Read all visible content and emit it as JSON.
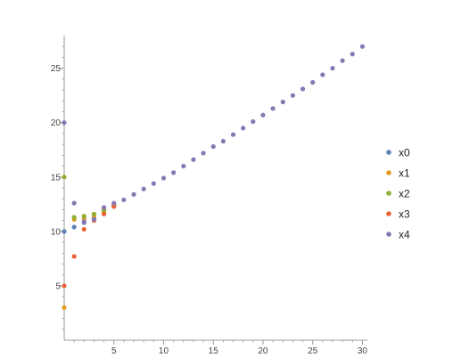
{
  "chart_data": {
    "type": "scatter",
    "title": "",
    "xlabel": "",
    "ylabel": "",
    "xlim": [
      0,
      30.5
    ],
    "ylim": [
      0,
      28
    ],
    "x_ticks": [
      5,
      10,
      15,
      20,
      25,
      30
    ],
    "y_ticks": [
      5,
      10,
      15,
      20,
      25
    ],
    "grid": false,
    "legend_position": "right",
    "series": [
      {
        "name": "x0",
        "color": "#5E81B5",
        "x": [
          0,
          1,
          2,
          3,
          4,
          5
        ],
        "y": [
          10.0,
          10.4,
          10.8,
          11.2,
          11.9,
          12.3
        ]
      },
      {
        "name": "x1",
        "color": "#E19C24",
        "x": [
          0,
          1,
          2,
          3,
          4,
          5
        ],
        "y": [
          3.0,
          11.1,
          11.2,
          11.4,
          11.8,
          12.4
        ]
      },
      {
        "name": "x2",
        "color": "#8FB032",
        "x": [
          0,
          1,
          2,
          3,
          4,
          5
        ],
        "y": [
          15.0,
          11.3,
          11.4,
          11.6,
          12.0,
          12.5
        ]
      },
      {
        "name": "x3",
        "color": "#EB6235",
        "x": [
          0,
          1,
          2,
          3,
          4,
          5
        ],
        "y": [
          5.0,
          7.7,
          10.2,
          11.0,
          11.6,
          12.3
        ]
      },
      {
        "name": "x4",
        "color": "#8778B3",
        "x": [
          0,
          1,
          2,
          3,
          4,
          5,
          6,
          7,
          8,
          9,
          10,
          11,
          12,
          13,
          14,
          15,
          16,
          17,
          18,
          19,
          20,
          21,
          22,
          23,
          24,
          25,
          26,
          27,
          28,
          29,
          30
        ],
        "y": [
          20.0,
          12.6,
          10.9,
          11.1,
          12.2,
          12.6,
          12.9,
          13.4,
          13.9,
          14.4,
          14.9,
          15.4,
          16.0,
          16.6,
          17.2,
          17.8,
          18.3,
          18.9,
          19.5,
          20.1,
          20.7,
          21.3,
          21.9,
          22.5,
          23.1,
          23.7,
          24.4,
          25.0,
          25.7,
          26.3,
          27.0
        ]
      }
    ]
  }
}
